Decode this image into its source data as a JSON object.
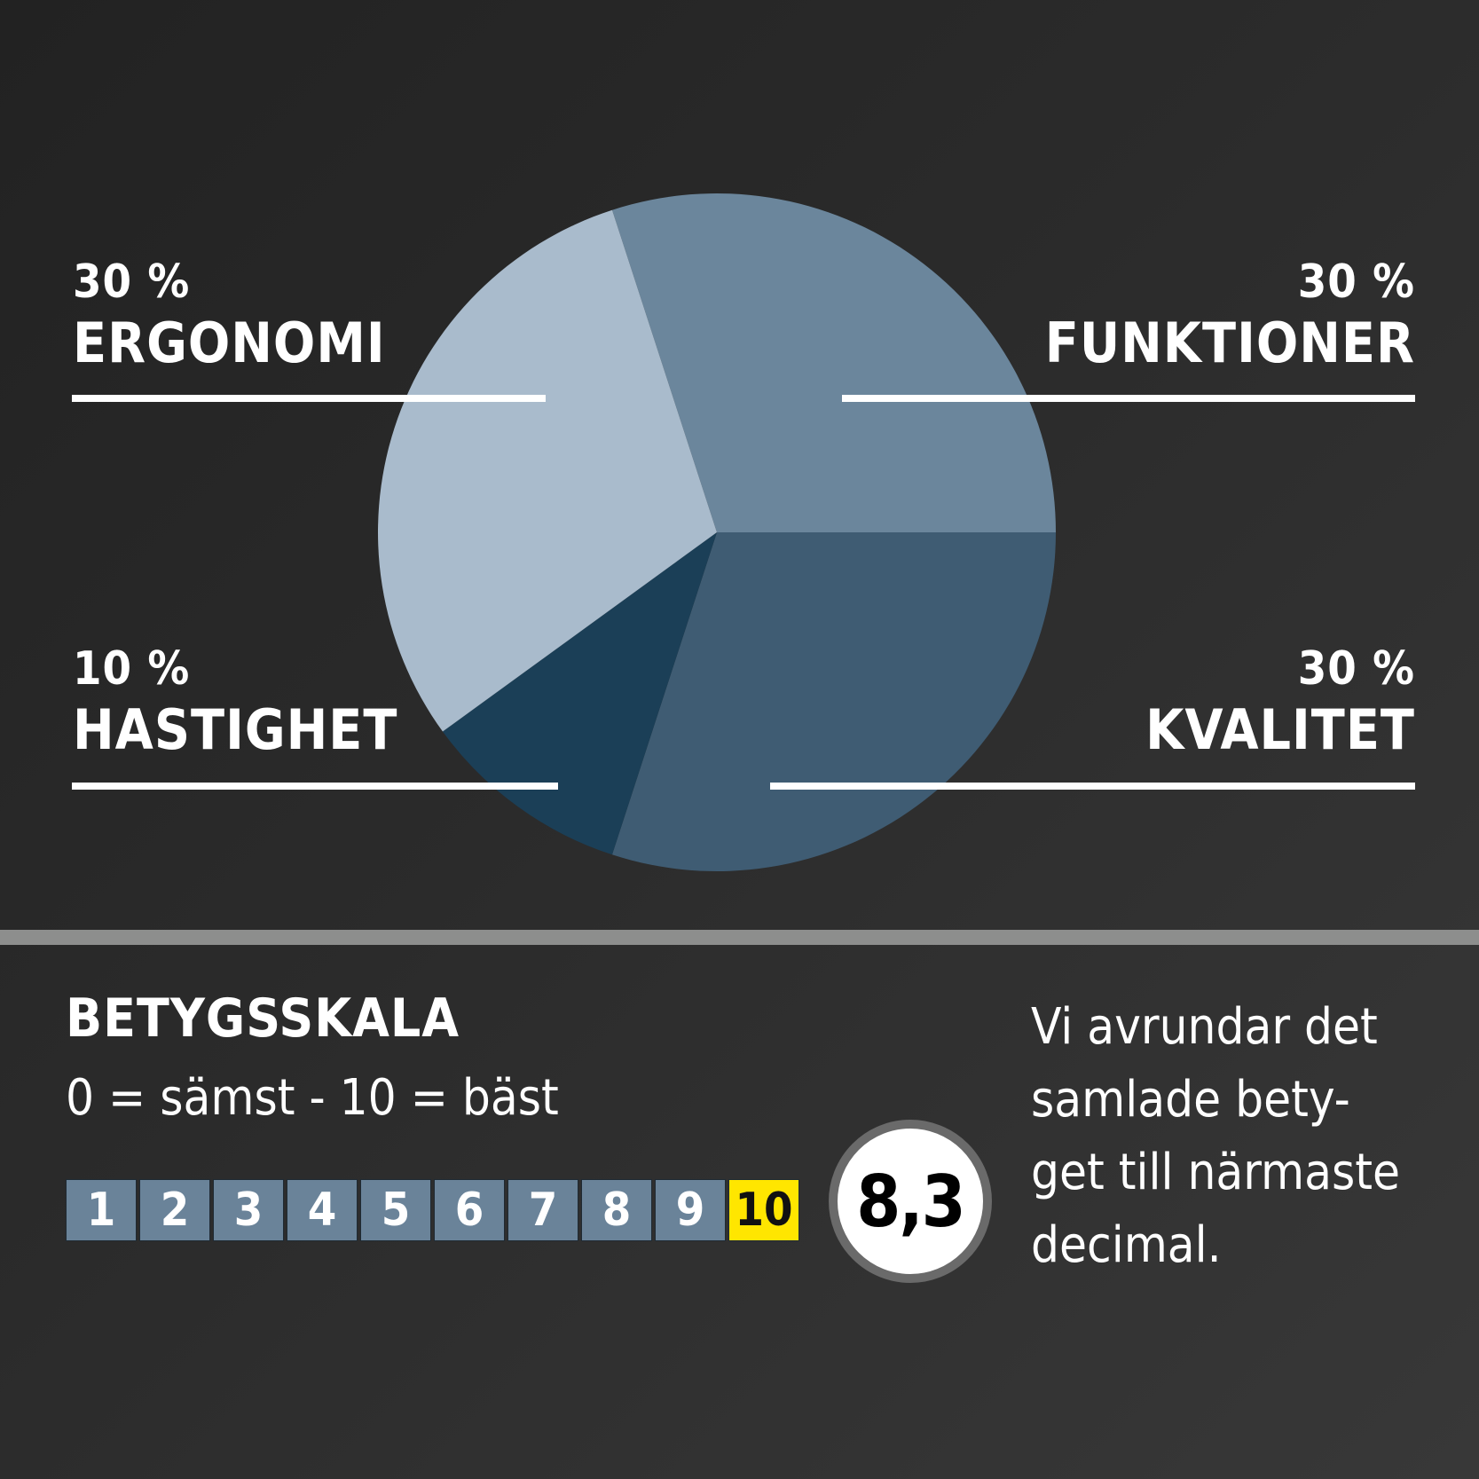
{
  "chart_data": {
    "type": "pie",
    "title": "",
    "categories": [
      "Funktioner",
      "Kvalitet",
      "Hastighet",
      "Ergonomi"
    ],
    "values": [
      30,
      30,
      10,
      30
    ],
    "unit": "%",
    "colors": [
      "#6b869c",
      "#3f5c73",
      "#1b3f57",
      "#a9bbcc"
    ],
    "labels": [
      {
        "pct": "30 %",
        "name": "ERGONOMI",
        "position": "top-left"
      },
      {
        "pct": "30 %",
        "name": "FUNKTIONER",
        "position": "top-right"
      },
      {
        "pct": "10 %",
        "name": "HASTIGHET",
        "position": "bottom-left"
      },
      {
        "pct": "30 %",
        "name": "KVALITET",
        "position": "bottom-right"
      }
    ],
    "legend": "none",
    "grid": false
  },
  "labels": {
    "ergonomi": {
      "pct": "30 %",
      "name": "ERGONOMI"
    },
    "funktioner": {
      "pct": "30 %",
      "name": "FUNKTIONER"
    },
    "hastighet": {
      "pct": "10 %",
      "name": "HASTIGHET"
    },
    "kvalitet": {
      "pct": "30 %",
      "name": "KVALITET"
    }
  },
  "rating": {
    "title": "BETYGSSKALA",
    "subtitle": "0 = sämst - 10 = bäst",
    "scale": [
      "1",
      "2",
      "3",
      "4",
      "5",
      "6",
      "7",
      "8",
      "9",
      "10"
    ],
    "highlighted": "10",
    "score": "8,3",
    "note_lines": [
      "Vi  avrundar det",
      "samlade bety-",
      "get till närmaste",
      "decimal."
    ]
  },
  "colors": {
    "background": "#2a2a2a",
    "divider": "#8d8e8d",
    "scale_cell": "#6a8399",
    "highlight": "#ffe600"
  }
}
